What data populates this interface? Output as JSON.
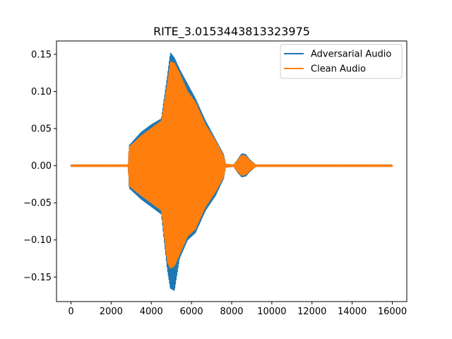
{
  "chart_data": {
    "type": "line",
    "title": "RITE_3.0153443813323975",
    "xlabel": "",
    "ylabel": "",
    "xlim": [
      -720,
      16720
    ],
    "ylim": [
      -0.183,
      0.168
    ],
    "xticks": [
      0,
      2000,
      4000,
      6000,
      8000,
      10000,
      12000,
      14000,
      16000
    ],
    "xtick_labels": [
      "0",
      "2000",
      "4000",
      "6000",
      "8000",
      "10000",
      "12000",
      "14000",
      "16000"
    ],
    "yticks": [
      0.15,
      0.1,
      0.05,
      0.0,
      -0.05,
      -0.1,
      -0.15
    ],
    "ytick_labels": [
      "0.15",
      "0.10",
      "0.05",
      "0.00",
      "−0.05",
      "−0.10",
      "−0.15"
    ],
    "grid": false,
    "legend_position": "top-right",
    "series": [
      {
        "name": "Adversarial Audio",
        "color": "#1f77b4",
        "envelope_x": [
          0,
          2850,
          2900,
          3500,
          4000,
          4500,
          4800,
          4950,
          5150,
          5400,
          5800,
          6200,
          6700,
          7200,
          7600,
          7700,
          8100,
          8300,
          8500,
          8700,
          8900,
          9200,
          16000
        ],
        "envelope_upper": [
          0.001,
          0.001,
          0.027,
          0.045,
          0.055,
          0.063,
          0.12,
          0.152,
          0.145,
          0.13,
          0.11,
          0.09,
          0.06,
          0.035,
          0.015,
          0.002,
          0.001,
          0.008,
          0.016,
          0.015,
          0.008,
          0.001,
          0.001
        ],
        "envelope_lower": [
          -0.001,
          -0.001,
          -0.03,
          -0.045,
          -0.055,
          -0.065,
          -0.14,
          -0.165,
          -0.168,
          -0.125,
          -0.1,
          -0.09,
          -0.06,
          -0.04,
          -0.017,
          -0.002,
          -0.001,
          -0.009,
          -0.015,
          -0.014,
          -0.008,
          -0.001,
          -0.001
        ]
      },
      {
        "name": "Clean Audio",
        "color": "#ff7f0e",
        "envelope_x": [
          0,
          2850,
          2900,
          3500,
          4000,
          4500,
          4800,
          4950,
          5150,
          5400,
          5800,
          6200,
          6700,
          7200,
          7600,
          7700,
          8100,
          8300,
          8500,
          8700,
          8900,
          9200,
          16000
        ],
        "envelope_upper": [
          0.001,
          0.001,
          0.025,
          0.04,
          0.05,
          0.06,
          0.11,
          0.14,
          0.138,
          0.125,
          0.1,
          0.085,
          0.055,
          0.033,
          0.013,
          0.002,
          0.001,
          0.007,
          0.014,
          0.013,
          0.007,
          0.001,
          0.001
        ],
        "envelope_lower": [
          -0.001,
          -0.001,
          -0.027,
          -0.04,
          -0.05,
          -0.06,
          -0.13,
          -0.138,
          -0.135,
          -0.12,
          -0.095,
          -0.085,
          -0.055,
          -0.035,
          -0.015,
          -0.002,
          -0.001,
          -0.008,
          -0.013,
          -0.012,
          -0.007,
          -0.001,
          -0.001
        ]
      }
    ]
  }
}
